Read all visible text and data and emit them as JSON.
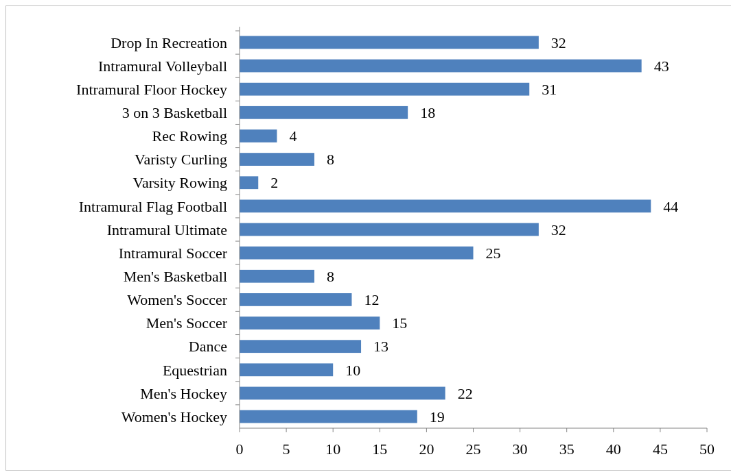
{
  "chart_data": {
    "type": "bar",
    "orientation": "horizontal",
    "categories": [
      "Drop In Recreation",
      "Intramural Volleyball",
      "Intramural Floor Hockey",
      "3 on 3 Basketball",
      "Rec Rowing",
      "Varisty Curling",
      "Varsity Rowing",
      "Intramural Flag Football",
      "Intramural Ultimate",
      "Intramural Soccer",
      "Men's Basketball",
      "Women's Soccer",
      "Men's Soccer",
      "Dance",
      "Equestrian",
      "Men's Hockey",
      "Women's Hockey"
    ],
    "values": [
      32,
      43,
      31,
      18,
      4,
      8,
      2,
      44,
      32,
      25,
      8,
      12,
      15,
      13,
      10,
      22,
      19
    ],
    "color": "#4f81bd",
    "xlim": [
      0,
      50
    ],
    "xticks": [
      0,
      5,
      10,
      15,
      20,
      25,
      30,
      35,
      40,
      45,
      50
    ],
    "data_labels": true,
    "grid": false
  }
}
